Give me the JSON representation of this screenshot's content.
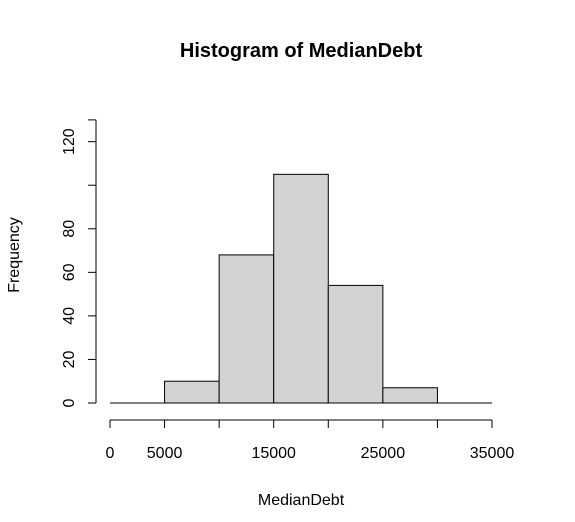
{
  "chart_data": {
    "type": "bar",
    "title": "Histogram of MedianDebt",
    "xlabel": "MedianDebt",
    "ylabel": "Frequency",
    "bin_edges": [
      0,
      5000,
      10000,
      15000,
      20000,
      25000,
      30000,
      35000
    ],
    "values": [
      0,
      10,
      68,
      105,
      54,
      7,
      0
    ],
    "xlim": [
      0,
      35000
    ],
    "ylim": [
      0,
      135
    ],
    "x_ticks": [
      0,
      5000,
      10000,
      15000,
      20000,
      25000,
      30000,
      35000
    ],
    "x_tick_labels": [
      "0",
      "5000",
      "",
      "15000",
      "",
      "25000",
      "",
      "35000"
    ],
    "y_ticks": [
      0,
      20,
      40,
      60,
      80,
      100,
      120
    ],
    "y_tick_labels": [
      "0",
      "20",
      "40",
      "60",
      "80",
      "",
      "120"
    ],
    "colors": {
      "bar_fill": "#d3d3d3",
      "bar_stroke": "#000000",
      "background": "#ffffff"
    },
    "grid": false,
    "legend": "none"
  }
}
